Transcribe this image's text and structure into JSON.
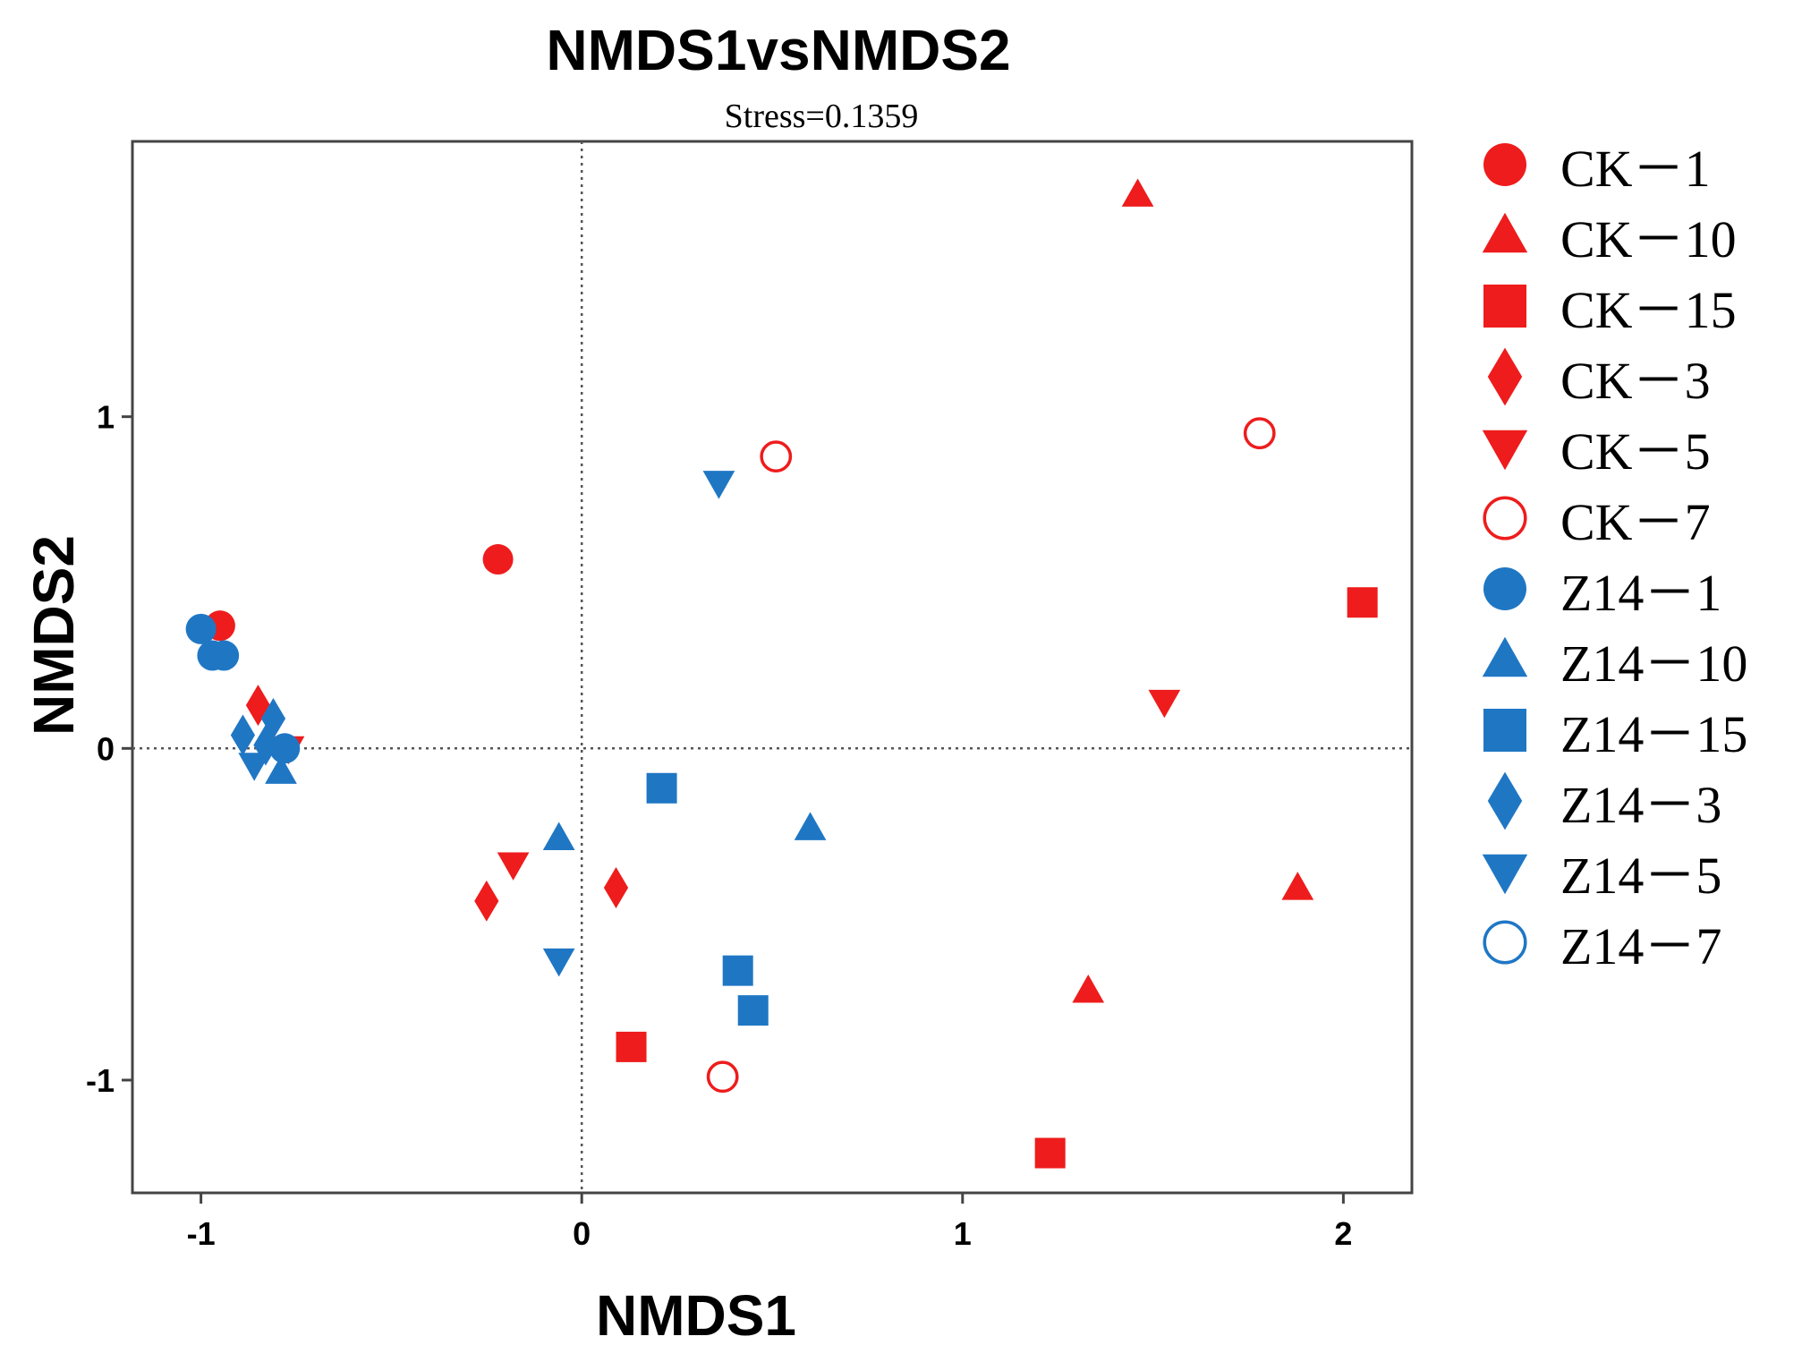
{
  "chart_data": {
    "type": "scatter",
    "title": "NMDS1vsNMDS2",
    "subtitle": "Stress=0.1359",
    "xlabel": "NMDS1",
    "ylabel": "NMDS2",
    "xlim": [
      -1.18,
      2.18
    ],
    "ylim": [
      -1.34,
      1.83
    ],
    "xticks": [
      -1,
      0,
      1,
      2
    ],
    "yticks": [
      -1,
      0,
      1
    ],
    "reference_lines": {
      "x": 0,
      "y": 0,
      "style": "dotted"
    },
    "colors": {
      "CK": "#ee1c1c",
      "Z14": "#1f77c4"
    },
    "series": [
      {
        "name": "CK－1",
        "color": "#ee1c1c",
        "marker": "circle",
        "points": [
          [
            -0.95,
            0.37
          ],
          [
            -0.22,
            0.57
          ]
        ]
      },
      {
        "name": "CK－10",
        "color": "#ee1c1c",
        "marker": "triangle-up",
        "points": [
          [
            1.46,
            1.67
          ],
          [
            1.88,
            -0.42
          ],
          [
            1.33,
            -0.73
          ]
        ]
      },
      {
        "name": "CK－15",
        "color": "#ee1c1c",
        "marker": "square",
        "points": [
          [
            2.05,
            0.44
          ],
          [
            0.13,
            -0.9
          ],
          [
            1.23,
            -1.22
          ]
        ]
      },
      {
        "name": "CK－3",
        "color": "#ee1c1c",
        "marker": "diamond",
        "points": [
          [
            -0.85,
            0.13
          ],
          [
            -0.25,
            -0.46
          ],
          [
            0.09,
            -0.42
          ]
        ]
      },
      {
        "name": "CK－5",
        "color": "#ee1c1c",
        "marker": "triangle-down",
        "points": [
          [
            1.53,
            0.14
          ],
          [
            -0.18,
            -0.35
          ],
          [
            -0.77,
            0.0
          ]
        ]
      },
      {
        "name": "CK－7",
        "color": "#ee1c1c",
        "marker": "circle-open",
        "points": [
          [
            0.51,
            0.88
          ],
          [
            1.78,
            0.95
          ],
          [
            0.37,
            -0.99
          ]
        ]
      },
      {
        "name": "Z14－1",
        "color": "#1f77c4",
        "marker": "circle",
        "points": [
          [
            -1.0,
            0.36
          ],
          [
            -0.97,
            0.28
          ],
          [
            -0.94,
            0.28
          ],
          [
            -0.78,
            0.0
          ]
        ]
      },
      {
        "name": "Z14－10",
        "color": "#1f77c4",
        "marker": "triangle-up",
        "points": [
          [
            -0.06,
            -0.27
          ],
          [
            0.6,
            -0.24
          ],
          [
            -0.79,
            -0.07
          ]
        ]
      },
      {
        "name": "Z14－15",
        "color": "#1f77c4",
        "marker": "square",
        "points": [
          [
            0.21,
            -0.12
          ],
          [
            0.41,
            -0.67
          ],
          [
            0.45,
            -0.79
          ]
        ]
      },
      {
        "name": "Z14－3",
        "color": "#1f77c4",
        "marker": "diamond",
        "points": [
          [
            -0.89,
            0.04
          ],
          [
            -0.81,
            0.09
          ],
          [
            -0.83,
            0.01
          ]
        ]
      },
      {
        "name": "Z14－5",
        "color": "#1f77c4",
        "marker": "triangle-down",
        "points": [
          [
            0.36,
            0.8
          ],
          [
            -0.06,
            -0.64
          ],
          [
            -0.86,
            -0.05
          ]
        ]
      },
      {
        "name": "Z14－7",
        "color": "#1f77c4",
        "marker": "circle-open",
        "points": []
      }
    ],
    "legend": {
      "position": "right"
    }
  }
}
